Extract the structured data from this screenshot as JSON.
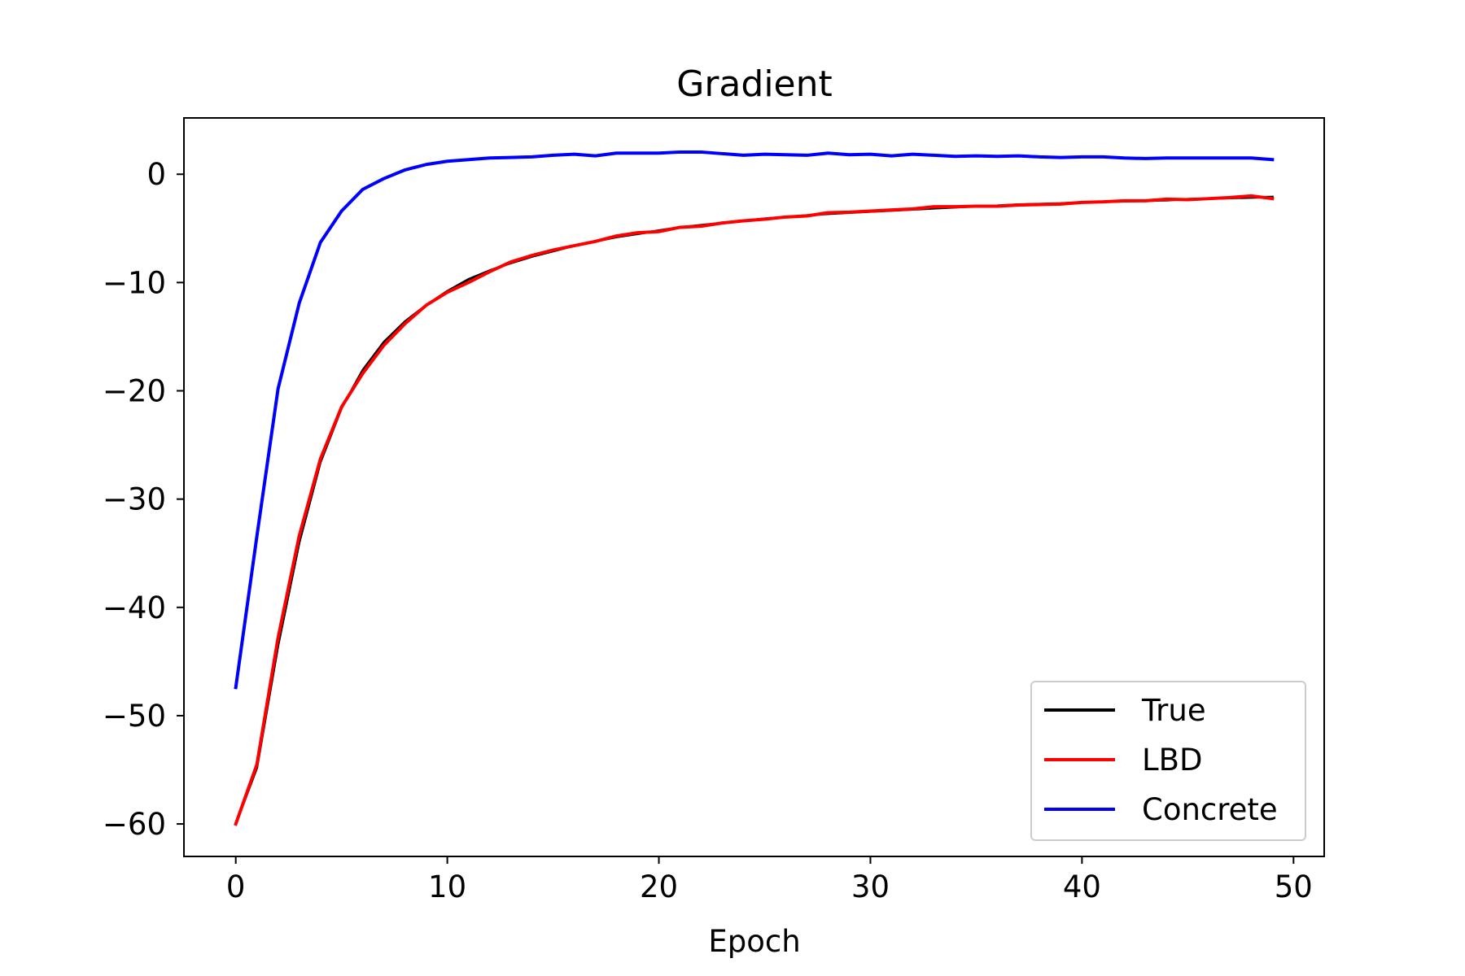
{
  "chart_data": {
    "type": "line",
    "title": "Gradient",
    "xlabel": "Epoch",
    "ylabel": "",
    "xlim": [
      -2.45,
      51.45
    ],
    "ylim": [
      -63.0,
      5.2
    ],
    "xticks": [
      0,
      10,
      20,
      30,
      40,
      50
    ],
    "xtick_labels": [
      "0",
      "10",
      "20",
      "30",
      "40",
      "50"
    ],
    "yticks": [
      0,
      -10,
      -20,
      -30,
      -40,
      -50,
      -60
    ],
    "ytick_labels": [
      "0",
      "−10",
      "−20",
      "−30",
      "−40",
      "−50",
      "−60"
    ],
    "grid": false,
    "legend_position": "lower-right",
    "x": [
      0,
      1,
      2,
      3,
      4,
      5,
      6,
      7,
      8,
      9,
      10,
      11,
      12,
      13,
      14,
      15,
      16,
      17,
      18,
      19,
      20,
      21,
      22,
      23,
      24,
      25,
      26,
      27,
      28,
      29,
      30,
      31,
      32,
      33,
      34,
      35,
      36,
      37,
      38,
      39,
      40,
      41,
      42,
      43,
      44,
      45,
      46,
      47,
      48,
      49
    ],
    "series": [
      {
        "name": "True",
        "color": "#000000",
        "values": [
          -60.0,
          -54.8,
          -43.5,
          -34.0,
          -26.6,
          -21.6,
          -18.1,
          -15.5,
          -13.6,
          -12.1,
          -10.8,
          -9.7,
          -8.9,
          -8.2,
          -7.6,
          -7.1,
          -6.6,
          -6.2,
          -5.8,
          -5.5,
          -5.2,
          -4.9,
          -4.7,
          -4.5,
          -4.3,
          -4.1,
          -3.95,
          -3.8,
          -3.65,
          -3.55,
          -3.45,
          -3.35,
          -3.25,
          -3.15,
          -3.05,
          -2.95,
          -2.9,
          -2.8,
          -2.75,
          -2.7,
          -2.6,
          -2.55,
          -2.5,
          -2.45,
          -2.4,
          -2.3,
          -2.25,
          -2.2,
          -2.15,
          -2.1
        ]
      },
      {
        "name": "LBD",
        "color": "#ff0000",
        "values": [
          -60.0,
          -54.5,
          -42.8,
          -33.4,
          -26.3,
          -21.5,
          -18.4,
          -15.8,
          -13.8,
          -12.1,
          -10.9,
          -10.0,
          -9.0,
          -8.1,
          -7.5,
          -7.0,
          -6.6,
          -6.2,
          -5.7,
          -5.4,
          -5.3,
          -4.9,
          -4.8,
          -4.5,
          -4.3,
          -4.15,
          -3.95,
          -3.85,
          -3.55,
          -3.5,
          -3.4,
          -3.3,
          -3.2,
          -3.0,
          -3.0,
          -2.95,
          -2.95,
          -2.85,
          -2.8,
          -2.75,
          -2.6,
          -2.55,
          -2.45,
          -2.45,
          -2.3,
          -2.35,
          -2.25,
          -2.15,
          -2.0,
          -2.25
        ]
      },
      {
        "name": "Concrete",
        "color": "#0000ff",
        "values": [
          -47.4,
          -33.4,
          -19.8,
          -11.9,
          -6.3,
          -3.4,
          -1.4,
          -0.4,
          0.4,
          0.9,
          1.2,
          1.35,
          1.5,
          1.55,
          1.6,
          1.75,
          1.85,
          1.7,
          1.95,
          1.95,
          1.95,
          2.05,
          2.05,
          1.9,
          1.75,
          1.85,
          1.8,
          1.75,
          1.95,
          1.8,
          1.85,
          1.7,
          1.85,
          1.75,
          1.65,
          1.7,
          1.65,
          1.7,
          1.6,
          1.55,
          1.6,
          1.6,
          1.5,
          1.45,
          1.5,
          1.5,
          1.5,
          1.5,
          1.5,
          1.35
        ]
      }
    ]
  }
}
